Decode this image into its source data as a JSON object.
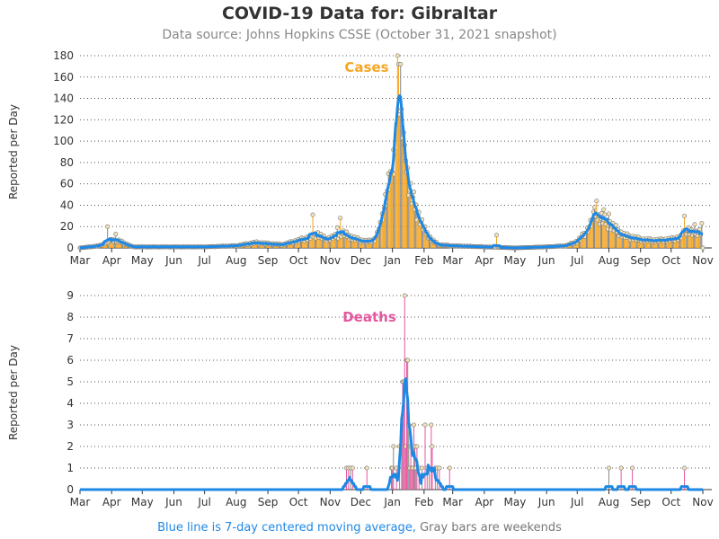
{
  "title": "COVID-19 Data for: Gibraltar",
  "subtitle": "Data source: Johns Hopkins CSSE (October 31, 2021 snapshot)",
  "footnote": {
    "part1": "Blue line is 7-day centered moving average,",
    "part2": " Gray bars are weekends"
  },
  "colors": {
    "cases": "#f5a623",
    "deaths": "#e6579f",
    "moving_average": "#1e88e5",
    "weekend": "#888888"
  },
  "chart_data": [
    {
      "type": "bar",
      "label": "Cases",
      "ylabel": "Reported per Day",
      "ylim": [
        0,
        180
      ],
      "yticks": [
        0,
        20,
        40,
        60,
        80,
        100,
        120,
        140,
        160,
        180
      ],
      "xticks": [
        "Mar",
        "Apr",
        "May",
        "Jun",
        "Jul",
        "Aug",
        "Sep",
        "Oct",
        "Nov",
        "Dec",
        "Jan",
        "Feb",
        "Mar",
        "Apr",
        "May",
        "Jun",
        "Jul",
        "Aug",
        "Sep",
        "Oct",
        "Nov"
      ],
      "grid": true,
      "x_start": "2020-03-01",
      "x_end": "2021-11-01",
      "series_keypoints": [
        [
          "2020-03-01",
          0
        ],
        [
          "2020-03-20",
          2
        ],
        [
          "2020-03-29",
          6
        ],
        [
          "2020-04-04",
          8
        ],
        [
          "2020-04-12",
          5
        ],
        [
          "2020-04-22",
          1
        ],
        [
          "2020-05-05",
          1
        ],
        [
          "2020-06-01",
          1
        ],
        [
          "2020-07-01",
          1
        ],
        [
          "2020-08-01",
          2
        ],
        [
          "2020-08-20",
          5
        ],
        [
          "2020-09-01",
          4
        ],
        [
          "2020-09-15",
          3
        ],
        [
          "2020-10-01",
          7
        ],
        [
          "2020-10-12",
          10
        ],
        [
          "2020-10-20",
          13
        ],
        [
          "2020-10-28",
          8
        ],
        [
          "2020-11-07",
          11
        ],
        [
          "2020-11-14",
          14
        ],
        [
          "2020-11-22",
          10
        ],
        [
          "2020-12-01",
          7
        ],
        [
          "2020-12-08",
          6
        ],
        [
          "2020-12-15",
          8
        ],
        [
          "2020-12-20",
          20
        ],
        [
          "2020-12-26",
          50
        ],
        [
          "2021-01-01",
          80
        ],
        [
          "2021-01-06",
          110
        ],
        [
          "2021-01-09",
          125
        ],
        [
          "2021-01-13",
          90
        ],
        [
          "2021-01-18",
          55
        ],
        [
          "2021-01-25",
          35
        ],
        [
          "2021-02-01",
          18
        ],
        [
          "2021-02-08",
          8
        ],
        [
          "2021-02-15",
          3
        ],
        [
          "2021-03-01",
          2
        ],
        [
          "2021-04-01",
          1
        ],
        [
          "2021-05-01",
          0
        ],
        [
          "2021-06-01",
          1
        ],
        [
          "2021-06-20",
          2
        ],
        [
          "2021-07-01",
          6
        ],
        [
          "2021-07-10",
          15
        ],
        [
          "2021-07-17",
          28
        ],
        [
          "2021-07-25",
          28
        ],
        [
          "2021-08-05",
          20
        ],
        [
          "2021-08-15",
          12
        ],
        [
          "2021-09-01",
          8
        ],
        [
          "2021-09-15",
          7
        ],
        [
          "2021-10-01",
          8
        ],
        [
          "2021-10-10",
          10
        ],
        [
          "2021-10-17",
          18
        ],
        [
          "2021-10-22",
          14
        ],
        [
          "2021-10-31",
          16
        ]
      ],
      "outliers": [
        [
          "2020-03-28",
          20
        ],
        [
          "2020-04-05",
          13
        ],
        [
          "2020-10-15",
          31
        ],
        [
          "2020-11-11",
          28
        ],
        [
          "2020-11-08",
          19
        ],
        [
          "2020-12-31",
          70
        ],
        [
          "2021-01-04",
          90
        ],
        [
          "2021-01-06",
          180
        ],
        [
          "2021-01-07",
          172
        ],
        [
          "2021-01-09",
          172
        ],
        [
          "2021-01-10",
          130
        ],
        [
          "2021-01-12",
          108
        ],
        [
          "2021-01-14",
          82
        ],
        [
          "2021-01-16",
          75
        ],
        [
          "2021-01-08",
          125
        ],
        [
          "2021-01-11",
          103
        ],
        [
          "2021-04-13",
          12
        ],
        [
          "2021-07-20",
          44
        ],
        [
          "2021-07-18",
          38
        ],
        [
          "2021-07-27",
          36
        ],
        [
          "2021-08-01",
          32
        ],
        [
          "2021-10-14",
          30
        ],
        [
          "2021-10-24",
          22
        ],
        [
          "2021-10-31",
          23
        ]
      ]
    },
    {
      "type": "bar",
      "label": "Deaths",
      "ylabel": "Reported per Day",
      "ylim": [
        0,
        9
      ],
      "yticks": [
        0,
        1,
        2,
        3,
        4,
        5,
        6,
        7,
        8,
        9
      ],
      "xticks": [
        "Mar",
        "Apr",
        "May",
        "Jun",
        "Jul",
        "Aug",
        "Sep",
        "Oct",
        "Nov",
        "Dec",
        "Jan",
        "Feb",
        "Mar",
        "Apr",
        "May",
        "Jun",
        "Jul",
        "Aug",
        "Sep",
        "Oct",
        "Nov"
      ],
      "grid": true,
      "x_start": "2020-03-01",
      "x_end": "2021-11-01",
      "daily": [
        [
          "2020-11-17",
          1
        ],
        [
          "2020-11-19",
          1
        ],
        [
          "2020-11-21",
          1
        ],
        [
          "2020-11-23",
          1
        ],
        [
          "2020-12-07",
          1
        ],
        [
          "2020-12-31",
          1
        ],
        [
          "2021-01-01",
          1
        ],
        [
          "2021-01-02",
          2
        ],
        [
          "2021-01-05",
          1
        ],
        [
          "2021-01-08",
          2
        ],
        [
          "2021-01-10",
          2
        ],
        [
          "2021-01-11",
          5
        ],
        [
          "2021-01-12",
          5
        ],
        [
          "2021-01-13",
          9
        ],
        [
          "2021-01-14",
          2
        ],
        [
          "2021-01-15",
          6
        ],
        [
          "2021-01-16",
          6
        ],
        [
          "2021-01-17",
          3
        ],
        [
          "2021-01-18",
          1
        ],
        [
          "2021-01-19",
          2
        ],
        [
          "2021-01-20",
          1
        ],
        [
          "2021-01-21",
          1
        ],
        [
          "2021-01-22",
          3
        ],
        [
          "2021-01-23",
          2
        ],
        [
          "2021-01-24",
          1
        ],
        [
          "2021-01-25",
          2
        ],
        [
          "2021-01-27",
          1
        ],
        [
          "2021-01-30",
          1
        ],
        [
          "2021-02-02",
          3
        ],
        [
          "2021-02-04",
          1
        ],
        [
          "2021-02-06",
          1
        ],
        [
          "2021-02-08",
          3
        ],
        [
          "2021-02-09",
          2
        ],
        [
          "2021-02-12",
          1
        ],
        [
          "2021-02-14",
          1
        ],
        [
          "2021-02-16",
          1
        ],
        [
          "2021-02-26",
          1
        ],
        [
          "2021-08-01",
          1
        ],
        [
          "2021-08-13",
          1
        ],
        [
          "2021-08-24",
          1
        ],
        [
          "2021-10-14",
          1
        ]
      ]
    }
  ]
}
